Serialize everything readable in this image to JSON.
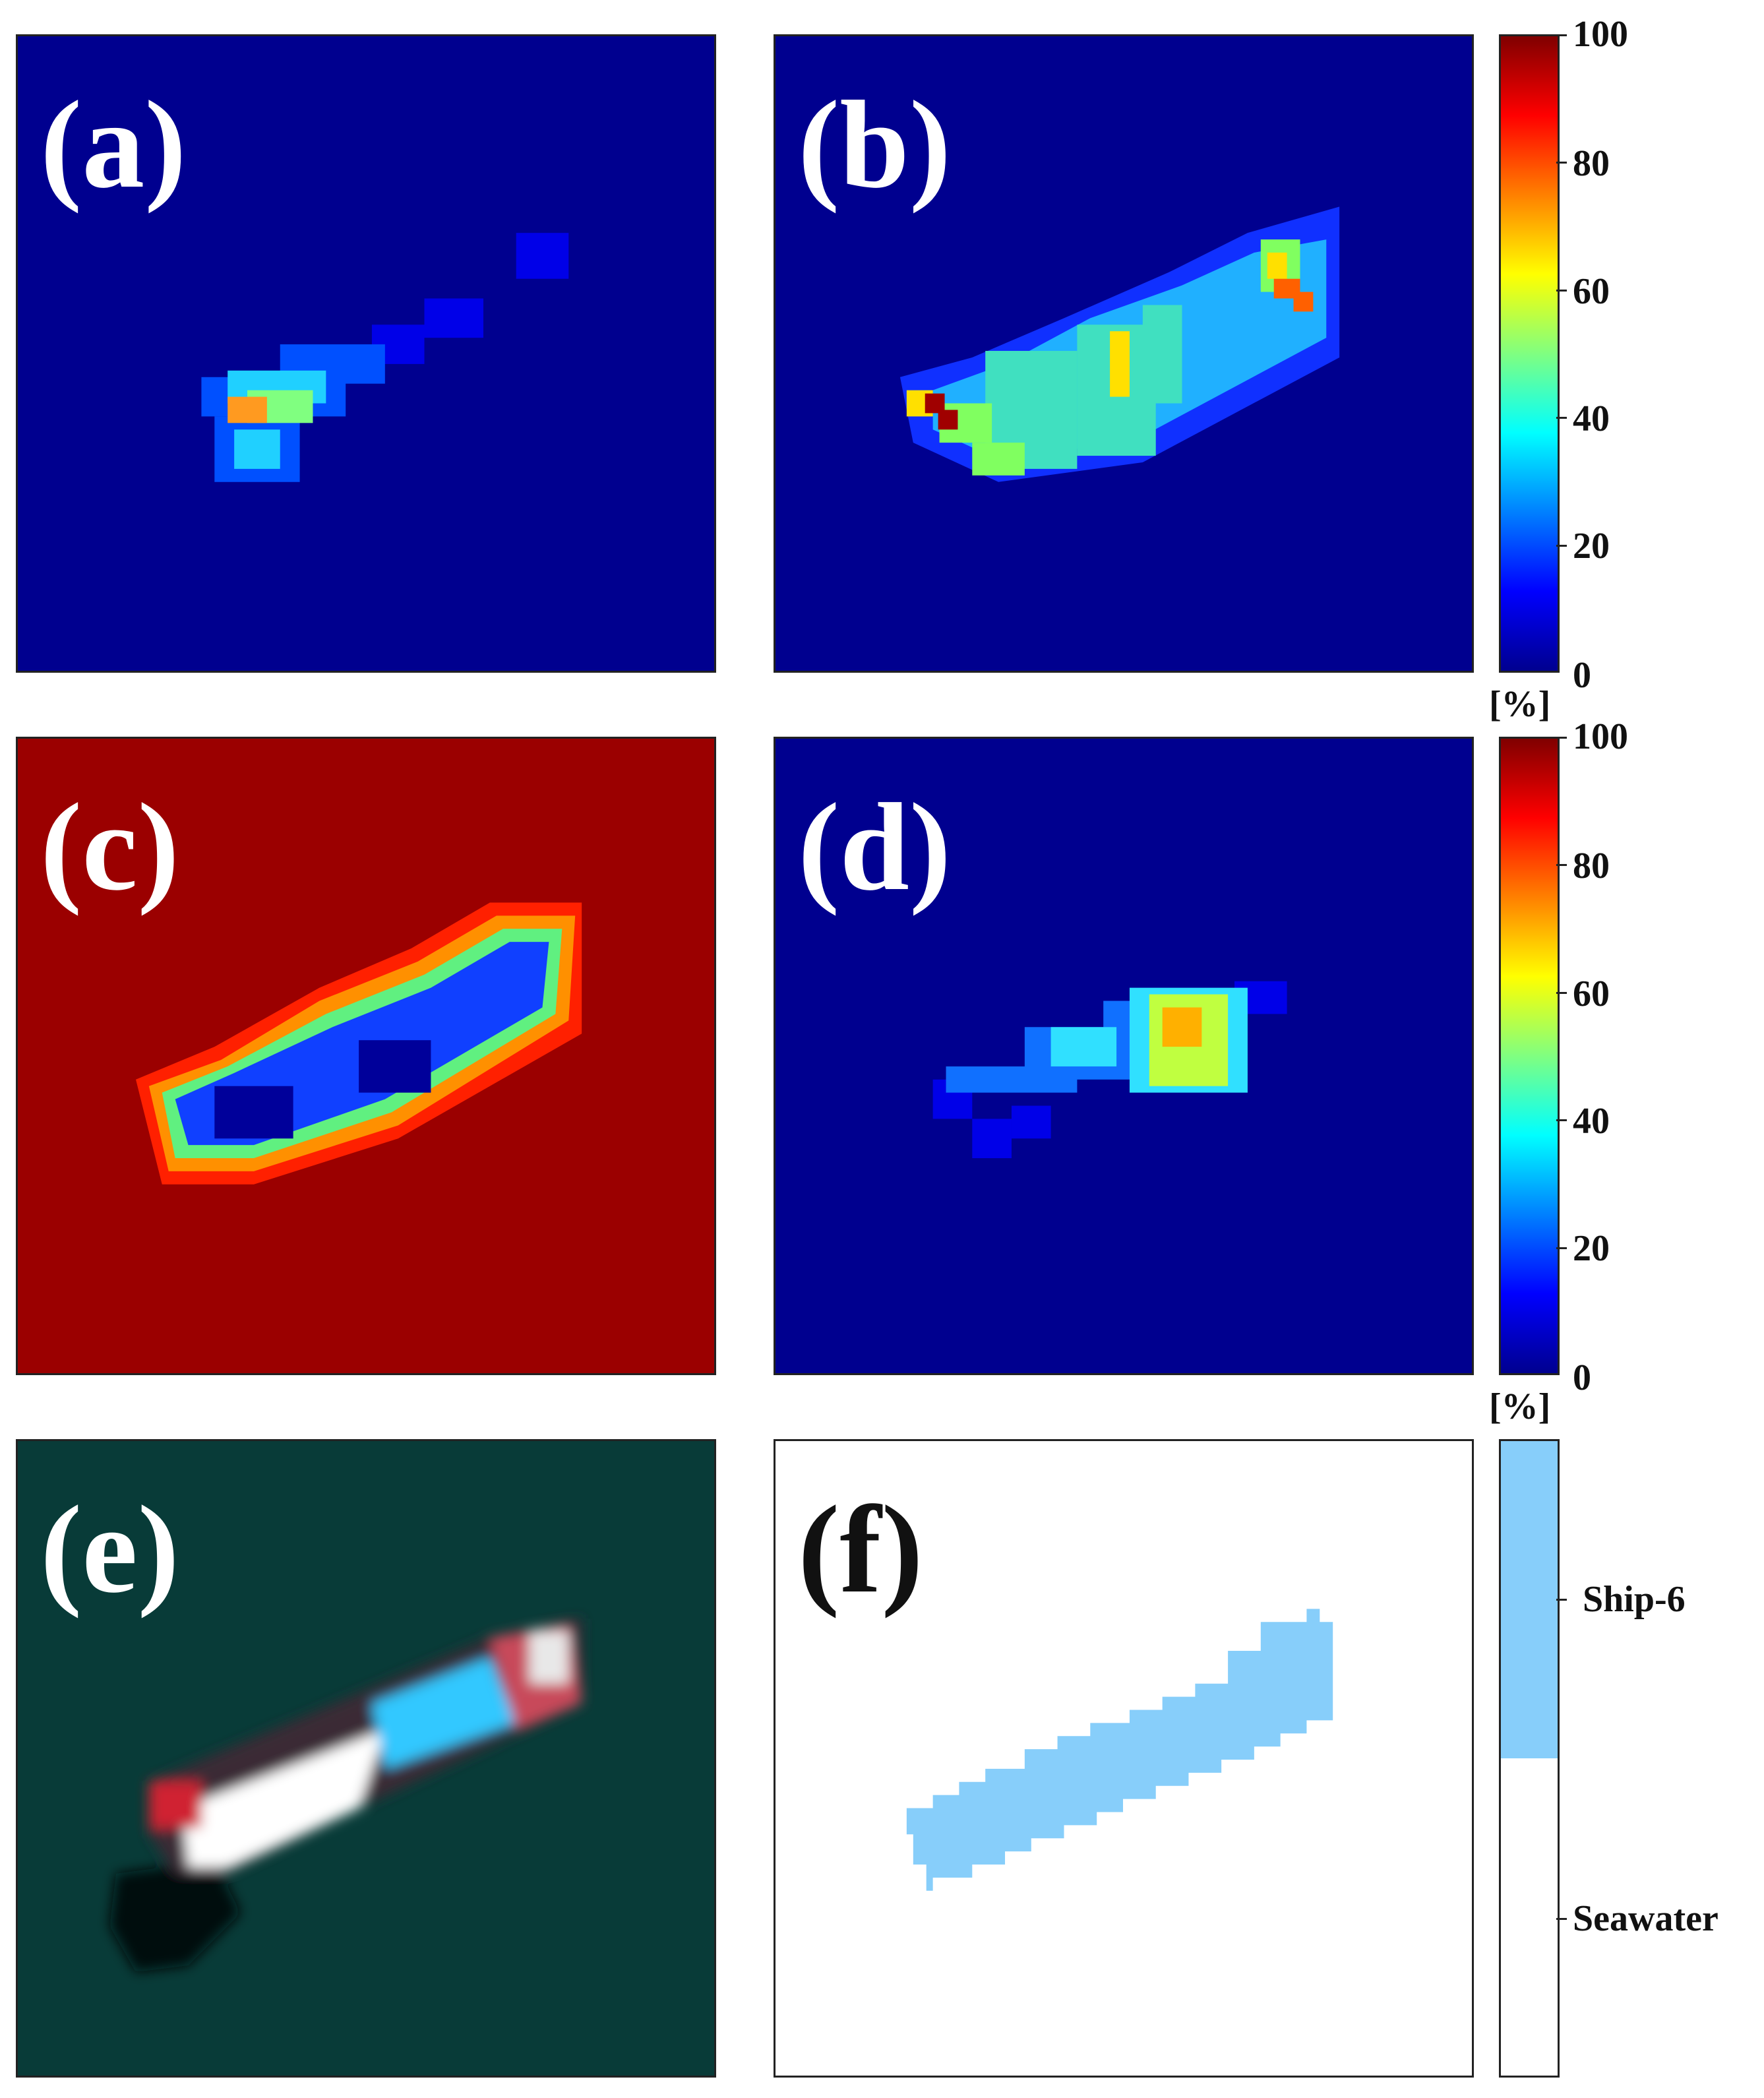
{
  "panels": [
    {
      "id": "a",
      "label": "(a)",
      "background": "#00008f",
      "mode": "abundance"
    },
    {
      "id": "b",
      "label": "(b)",
      "background": "#00008f",
      "mode": "abundance"
    },
    {
      "id": "c",
      "label": "(c)",
      "background": "#9b0000",
      "mode": "abundance"
    },
    {
      "id": "d",
      "label": "(d)",
      "background": "#00008f",
      "mode": "abundance"
    },
    {
      "id": "e",
      "label": "(e)",
      "background": "#083b38",
      "mode": "true-color"
    },
    {
      "id": "f",
      "label": "(f)",
      "background": "#ffffff",
      "mode": "classification"
    }
  ],
  "colorbar": {
    "ticks": [
      "100",
      "80",
      "60",
      "40",
      "20",
      "0"
    ],
    "unit": "[%]",
    "colormap": "jet"
  },
  "classes": [
    {
      "name": "Ship-6",
      "color": "#87cefa"
    },
    {
      "name": "Seawater",
      "color": "#ffffff"
    }
  ]
}
